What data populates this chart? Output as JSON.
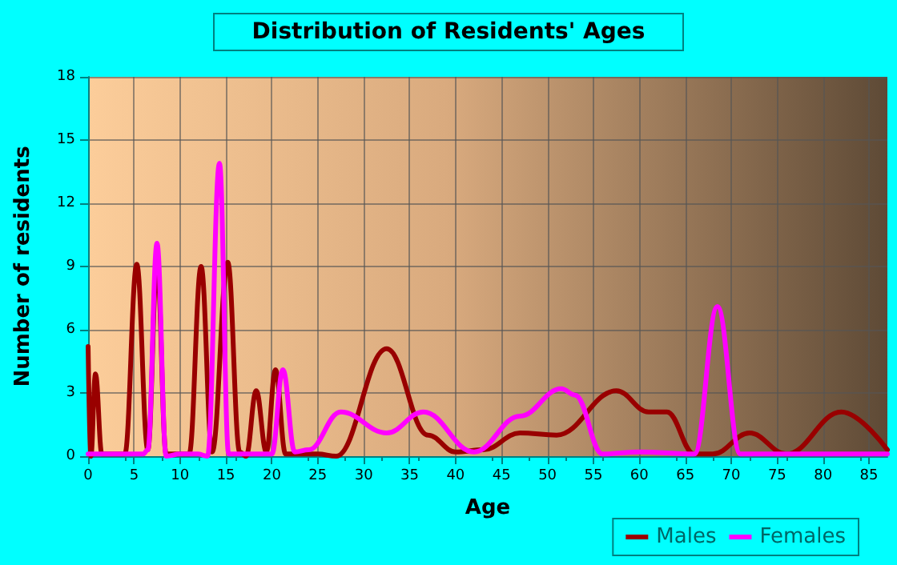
{
  "chart_data": {
    "type": "line",
    "title": "Distribution of Residents' Ages",
    "xlabel": "Age",
    "ylabel": "Number of residents",
    "xlim": [
      0,
      87
    ],
    "xticks": [
      0,
      5,
      10,
      15,
      20,
      25,
      30,
      35,
      40,
      45,
      50,
      55,
      60,
      65,
      70,
      75,
      80,
      85
    ],
    "ylim": [
      0,
      18
    ],
    "yticks": [
      0,
      3,
      6,
      9,
      12,
      15,
      18
    ],
    "grid": true,
    "legend": "bottom right",
    "marker": "none",
    "line_style": "solid",
    "series": [
      {
        "name": "Males",
        "color": "#990000",
        "x": [
          0,
          0.3,
          0.8,
          1.5,
          4,
          5.3,
          6.5,
          7.5,
          8.5,
          10,
          11,
          12.3,
          13.5,
          15.2,
          16.5,
          17.2,
          18.3,
          19.4,
          20.4,
          21.5,
          25,
          27,
          32.5,
          37,
          40,
          43,
          47,
          51,
          57.5,
          61,
          63,
          66,
          68,
          72,
          76,
          82,
          87
        ],
        "values": [
          5.2,
          0,
          3.9,
          0.1,
          0.1,
          9.1,
          0.3,
          9.1,
          0.1,
          0.1,
          0.1,
          9,
          0.2,
          9.2,
          0.2,
          0,
          3.1,
          0.2,
          4.1,
          0.1,
          0.1,
          0,
          5.1,
          1,
          0.2,
          0.3,
          1.1,
          1,
          3.1,
          2.1,
          2.1,
          0.1,
          0.1,
          1.1,
          0.1,
          2.1,
          0.3
        ]
      },
      {
        "name": "Females",
        "color": "#ff00ff",
        "x": [
          0,
          6,
          6.5,
          7.5,
          8.5,
          10,
          12,
          13,
          14.3,
          15.3,
          20,
          21.2,
          22.5,
          24,
          27.5,
          32.5,
          36.5,
          42,
          47,
          51.5,
          53,
          56,
          60,
          66,
          68.5,
          71,
          87
        ],
        "values": [
          0.1,
          0.1,
          0.3,
          10.1,
          0,
          0.1,
          0.1,
          0,
          13.9,
          0.1,
          0.1,
          4.1,
          0.2,
          0.3,
          2.1,
          1.1,
          2.1,
          0.2,
          1.9,
          3.2,
          2.9,
          0.1,
          0.2,
          0.1,
          7.1,
          0.1,
          0.1
        ]
      }
    ]
  }
}
